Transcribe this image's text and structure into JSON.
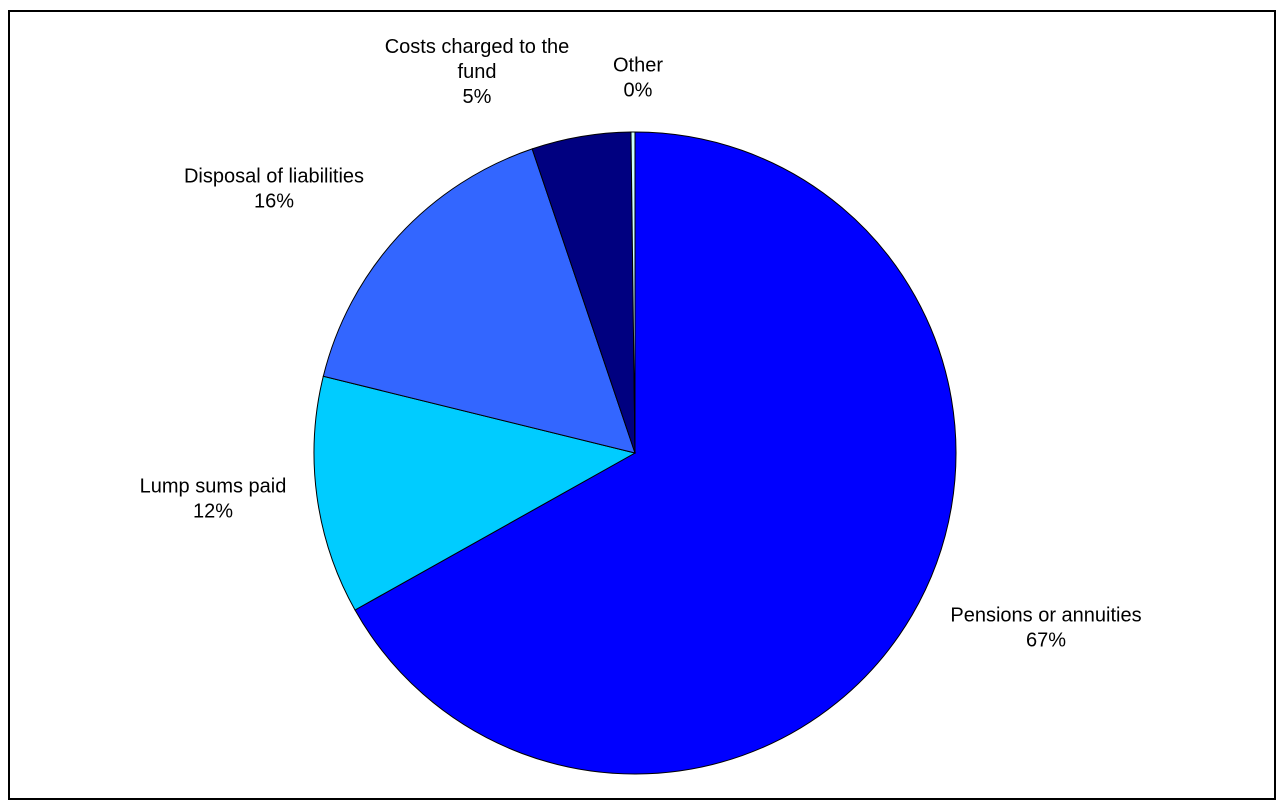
{
  "chart_data": {
    "type": "pie",
    "title": "",
    "slices": [
      {
        "label": [
          "Pensions or annuities"
        ],
        "value": 67,
        "display": "67%",
        "color": "#0000FF"
      },
      {
        "label": [
          "Lump sums paid"
        ],
        "value": 12,
        "display": "12%",
        "color": "#00CCFF"
      },
      {
        "label": [
          "Disposal of liabilities"
        ],
        "value": 16,
        "display": "16%",
        "color": "#3366FF"
      },
      {
        "label": [
          "Costs charged to the",
          "fund"
        ],
        "value": 5,
        "display": "5%",
        "color": "#000080"
      },
      {
        "label": [
          "Other"
        ],
        "value": 0.2,
        "display": "0%",
        "color": "#CCFFFF"
      }
    ]
  }
}
